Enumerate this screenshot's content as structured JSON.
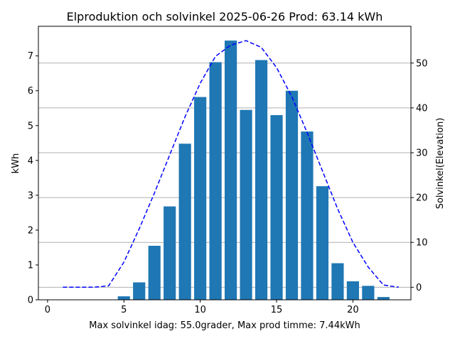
{
  "chart_data": {
    "type": "bar",
    "title": "Elproduktion och solvinkel 2025-06-26 Prod: 63.14 kWh",
    "xlabel": "Max solvinkel idag: 55.0grader, Max prod timme: 7.44kWh",
    "ylabel": "kWh",
    "y2label": "Solvinkel(Elevation)",
    "xlim": [
      -0.6,
      23.8
    ],
    "ylim": [
      0,
      7.85
    ],
    "y2lim": [
      -2.8,
      58.2
    ],
    "xticks": [
      0,
      5,
      10,
      15,
      20
    ],
    "yticks": [
      0,
      1,
      2,
      3,
      4,
      5,
      6,
      7
    ],
    "y2ticks": [
      0,
      10,
      20,
      30,
      40,
      50
    ],
    "grid": "horizontal lines on secondary axis",
    "legend": "none",
    "colors": {
      "bars": "#1f77b4",
      "elevation": "#0000ff",
      "grid": "#b0b0b0"
    },
    "series": [
      {
        "type": "bar",
        "x": [
          5,
          6,
          7,
          8,
          9,
          10,
          11,
          12,
          13,
          14,
          15,
          16,
          17,
          18,
          19,
          20,
          21,
          22
        ],
        "values": [
          0.1,
          0.5,
          1.55,
          2.68,
          4.48,
          5.82,
          6.82,
          7.44,
          5.45,
          6.88,
          5.3,
          6.0,
          4.83,
          3.26,
          1.05,
          0.53,
          0.4,
          0.08
        ]
      },
      {
        "type": "line",
        "style": "dashed",
        "axis": "secondary",
        "x": [
          1,
          2,
          3,
          4,
          5,
          6,
          7,
          8,
          9,
          10,
          11,
          12,
          13,
          14,
          15,
          16,
          17,
          18,
          19,
          20,
          21,
          22,
          23
        ],
        "values": [
          0,
          0,
          0,
          0.3,
          5.6,
          13.0,
          21.0,
          29.5,
          38.0,
          45.5,
          51.5,
          54.0,
          55.0,
          53.5,
          49.0,
          42.5,
          34.5,
          26.0,
          17.5,
          10.0,
          4.5,
          0.5,
          0
        ]
      }
    ]
  }
}
